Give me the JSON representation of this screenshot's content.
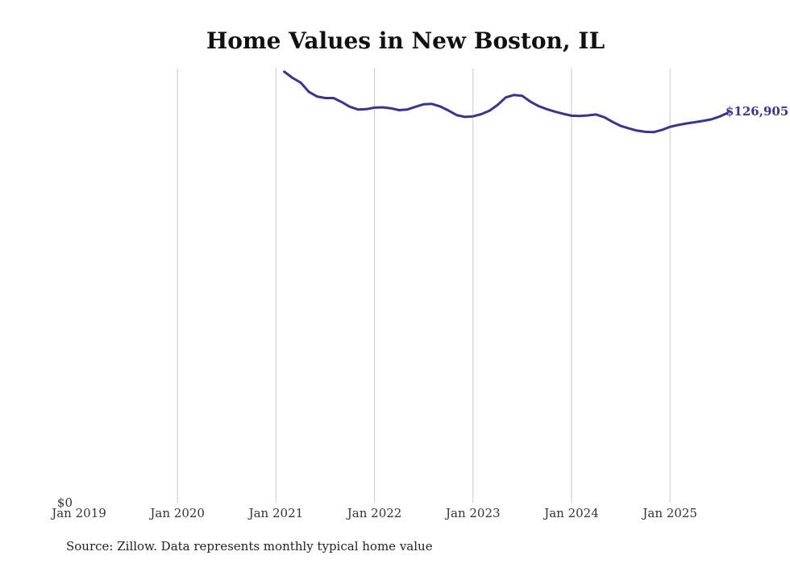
{
  "colors": {
    "line": "#3a3397",
    "gridline": "#c8c8c8",
    "text": "#111111"
  },
  "chart_data": {
    "type": "line",
    "title": "Home Values in New Boston, IL",
    "xlabel": "",
    "ylabel": "",
    "x_ticks": [
      "Jan 2019",
      "Jan 2020",
      "Jan 2021",
      "Jan 2022",
      "Jan 2023",
      "Jan 2024",
      "Jan 2025"
    ],
    "y_ticks": [
      "$0"
    ],
    "xlim": [
      "2019-01",
      "2025-11"
    ],
    "ylim": [
      0,
      140000
    ],
    "grid": "vertical",
    "end_label": "$126,905",
    "series": [
      {
        "x": [
          "2021-02",
          "2021-03",
          "2021-04",
          "2021-05",
          "2021-06",
          "2021-07",
          "2021-08",
          "2021-09",
          "2021-10",
          "2021-11",
          "2021-12",
          "2022-01",
          "2022-02",
          "2022-03",
          "2022-04",
          "2022-05",
          "2022-06",
          "2022-07",
          "2022-08",
          "2022-09",
          "2022-10",
          "2022-11",
          "2022-12",
          "2023-01",
          "2023-02",
          "2023-03",
          "2023-04",
          "2023-05",
          "2023-06",
          "2023-07",
          "2023-08",
          "2023-09",
          "2023-10",
          "2023-11",
          "2023-12",
          "2024-01",
          "2024-02",
          "2024-03",
          "2024-04",
          "2024-05",
          "2024-06",
          "2024-07",
          "2024-08",
          "2024-09",
          "2024-10",
          "2024-11",
          "2024-12",
          "2025-01",
          "2025-02",
          "2025-03",
          "2025-04",
          "2025-05",
          "2025-06",
          "2025-07",
          "2025-08"
        ],
        "y": [
          139000,
          137000,
          135500,
          132500,
          131000,
          130500,
          130500,
          129200,
          127700,
          126800,
          126900,
          127400,
          127500,
          127200,
          126600,
          126800,
          127700,
          128500,
          128600,
          127800,
          126500,
          125000,
          124400,
          124600,
          125300,
          126400,
          128300,
          130700,
          131500,
          131200,
          129300,
          127900,
          126900,
          126100,
          125400,
          124800,
          124700,
          124900,
          125200,
          124300,
          122800,
          121500,
          120700,
          120000,
          119600,
          119500,
          120200,
          121200,
          121800,
          122300,
          122700,
          123100,
          123600,
          124500,
          125700
        ]
      }
    ]
  },
  "source_note": "Source: Zillow. Data represents monthly typical home value"
}
